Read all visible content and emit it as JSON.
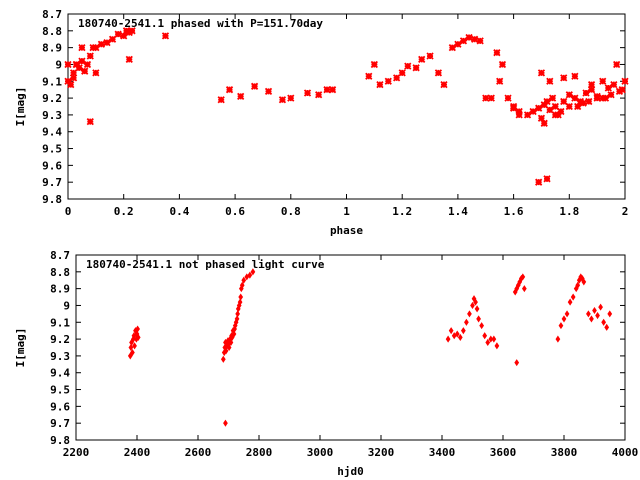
{
  "chart_data": [
    {
      "type": "scatter",
      "title": "180740-2541.1 phased with P=151.70day",
      "xlabel": "phase",
      "ylabel": "I[mag]",
      "xlim": [
        0,
        2
      ],
      "ylim": [
        9.8,
        8.7
      ],
      "y_inverted": true,
      "xticks": [
        "0",
        "0.2",
        "0.4",
        "0.6",
        "0.8",
        "1",
        "1.2",
        "1.4",
        "1.6",
        "1.8",
        "2"
      ],
      "yticks": [
        "8.7",
        "8.8",
        "8.9",
        "9",
        "9.1",
        "9.2",
        "9.3",
        "9.4",
        "9.5",
        "9.6",
        "9.7",
        "9.8"
      ],
      "color": "#ff0000",
      "marker": "x-cross",
      "series": [
        {
          "x": [
            0.0,
            0.01,
            0.02,
            0.03,
            0.04,
            0.05,
            0.06,
            0.07,
            0.08,
            0.1,
            0.12,
            0.14,
            0.16,
            0.18,
            0.2,
            0.21,
            0.22,
            0.23,
            0.08,
            0.1,
            0.22,
            0.35,
            0.02,
            0.05,
            0.09,
            0.0,
            0.03,
            0.55,
            0.58,
            0.62,
            0.67,
            0.72,
            0.77,
            0.8,
            0.86,
            0.9,
            0.93,
            0.95,
            1.08,
            1.1,
            1.12,
            1.15,
            1.18,
            1.2,
            1.22,
            1.25,
            1.27,
            1.3,
            1.33,
            1.35,
            1.38,
            1.4,
            1.42,
            1.44,
            1.46,
            1.48,
            1.5,
            1.52,
            1.54,
            1.56,
            1.58,
            1.6,
            1.62,
            1.55,
            1.6,
            1.62,
            1.65,
            1.67,
            1.69,
            1.7,
            1.71,
            1.72,
            1.73,
            1.74,
            1.75,
            1.76,
            1.78,
            1.8,
            1.82,
            1.84,
            1.86,
            1.88,
            1.9,
            1.92,
            1.94,
            1.96,
            1.98,
            2.0,
            1.7,
            1.73,
            1.78,
            1.82,
            1.88,
            1.92,
            1.97,
            1.69,
            1.72,
            1.75,
            1.8,
            1.85,
            1.9,
            1.95,
            1.99,
            1.71,
            1.77,
            1.83,
            1.87,
            1.93
          ],
          "y": [
            9.1,
            9.12,
            9.05,
            9.0,
            9.02,
            8.98,
            9.04,
            9.0,
            8.95,
            9.05,
            8.88,
            8.87,
            8.85,
            8.82,
            8.83,
            8.8,
            8.81,
            8.8,
            9.34,
            8.9,
            8.97,
            8.83,
            9.08,
            8.9,
            8.9,
            9.0,
            9.0,
            9.21,
            9.15,
            9.19,
            9.13,
            9.16,
            9.21,
            9.2,
            9.17,
            9.18,
            9.15,
            9.15,
            9.07,
            9.0,
            9.12,
            9.1,
            9.08,
            9.05,
            9.01,
            9.02,
            8.97,
            8.95,
            9.05,
            9.12,
            8.9,
            8.88,
            8.86,
            8.84,
            8.85,
            8.86,
            9.2,
            9.2,
            8.93,
            9.0,
            9.2,
            9.25,
            9.28,
            9.1,
            9.26,
            9.3,
            9.3,
            9.28,
            9.26,
            9.32,
            9.24,
            9.22,
            9.27,
            9.2,
            9.25,
            9.3,
            9.22,
            9.18,
            9.2,
            9.22,
            9.17,
            9.15,
            9.19,
            9.2,
            9.14,
            9.12,
            9.16,
            9.1,
            9.05,
            9.1,
            9.08,
            9.07,
            9.12,
            9.1,
            9.0,
            9.7,
            9.68,
            9.3,
            9.25,
            9.23,
            9.2,
            9.18,
            9.15,
            9.35,
            9.28,
            9.25,
            9.22,
            9.2
          ]
        }
      ]
    },
    {
      "type": "scatter",
      "title": "180740-2541.1 not phased light curve",
      "xlabel": "hjd0",
      "ylabel": "I[mag]",
      "xlim": [
        2200,
        4000
      ],
      "ylim": [
        9.8,
        8.7
      ],
      "y_inverted": true,
      "xticks": [
        "2200",
        "2400",
        "2600",
        "2800",
        "3000",
        "3200",
        "3400",
        "3600",
        "3800",
        "4000"
      ],
      "yticks": [
        "8.7",
        "8.8",
        "8.9",
        "9",
        "9.1",
        "9.2",
        "9.3",
        "9.4",
        "9.5",
        "9.6",
        "9.7",
        "9.8"
      ],
      "color": "#ff0000",
      "marker": "diamond",
      "series": [
        {
          "x": [
            2378,
            2380,
            2382,
            2385,
            2388,
            2390,
            2392,
            2395,
            2398,
            2400,
            2402,
            2404,
            2683,
            2686,
            2688,
            2690,
            2692,
            2695,
            2698,
            2700,
            2702,
            2705,
            2708,
            2710,
            2712,
            2715,
            2718,
            2720,
            2722,
            2725,
            2728,
            2730,
            2732,
            2735,
            2738,
            2740,
            2742,
            2745,
            2750,
            2760,
            2770,
            2780,
            2690,
            3420,
            3430,
            3440,
            3450,
            3460,
            3470,
            3480,
            3490,
            3500,
            3505,
            3510,
            3515,
            3520,
            3530,
            3540,
            3550,
            3560,
            3570,
            3580,
            3640,
            3645,
            3650,
            3655,
            3660,
            3665,
            3670,
            3645,
            3780,
            3790,
            3800,
            3810,
            3820,
            3830,
            3840,
            3845,
            3850,
            3855,
            3860,
            3865,
            3880,
            3890,
            3900,
            3910,
            3920,
            3930,
            3940,
            3950
          ],
          "y": [
            9.3,
            9.25,
            9.22,
            9.28,
            9.2,
            9.18,
            9.24,
            9.15,
            9.2,
            9.17,
            9.14,
            9.19,
            9.32,
            9.28,
            9.25,
            9.22,
            9.27,
            9.24,
            9.21,
            9.23,
            9.25,
            9.2,
            9.22,
            9.18,
            9.19,
            9.15,
            9.17,
            9.14,
            9.12,
            9.1,
            9.08,
            9.05,
            9.02,
            9.0,
            8.98,
            8.95,
            8.9,
            8.88,
            8.85,
            8.83,
            8.82,
            8.8,
            9.7,
            9.2,
            9.15,
            9.18,
            9.17,
            9.19,
            9.15,
            9.1,
            9.05,
            9.0,
            8.96,
            8.98,
            9.02,
            9.08,
            9.12,
            9.18,
            9.22,
            9.2,
            9.2,
            9.24,
            8.92,
            8.9,
            8.88,
            8.86,
            8.84,
            8.83,
            8.9,
            9.34,
            9.2,
            9.12,
            9.08,
            9.05,
            8.98,
            8.95,
            8.9,
            8.88,
            8.85,
            8.83,
            8.84,
            8.86,
            9.05,
            9.08,
            9.03,
            9.06,
            9.01,
            9.1,
            9.13,
            9.05
          ]
        }
      ]
    }
  ]
}
